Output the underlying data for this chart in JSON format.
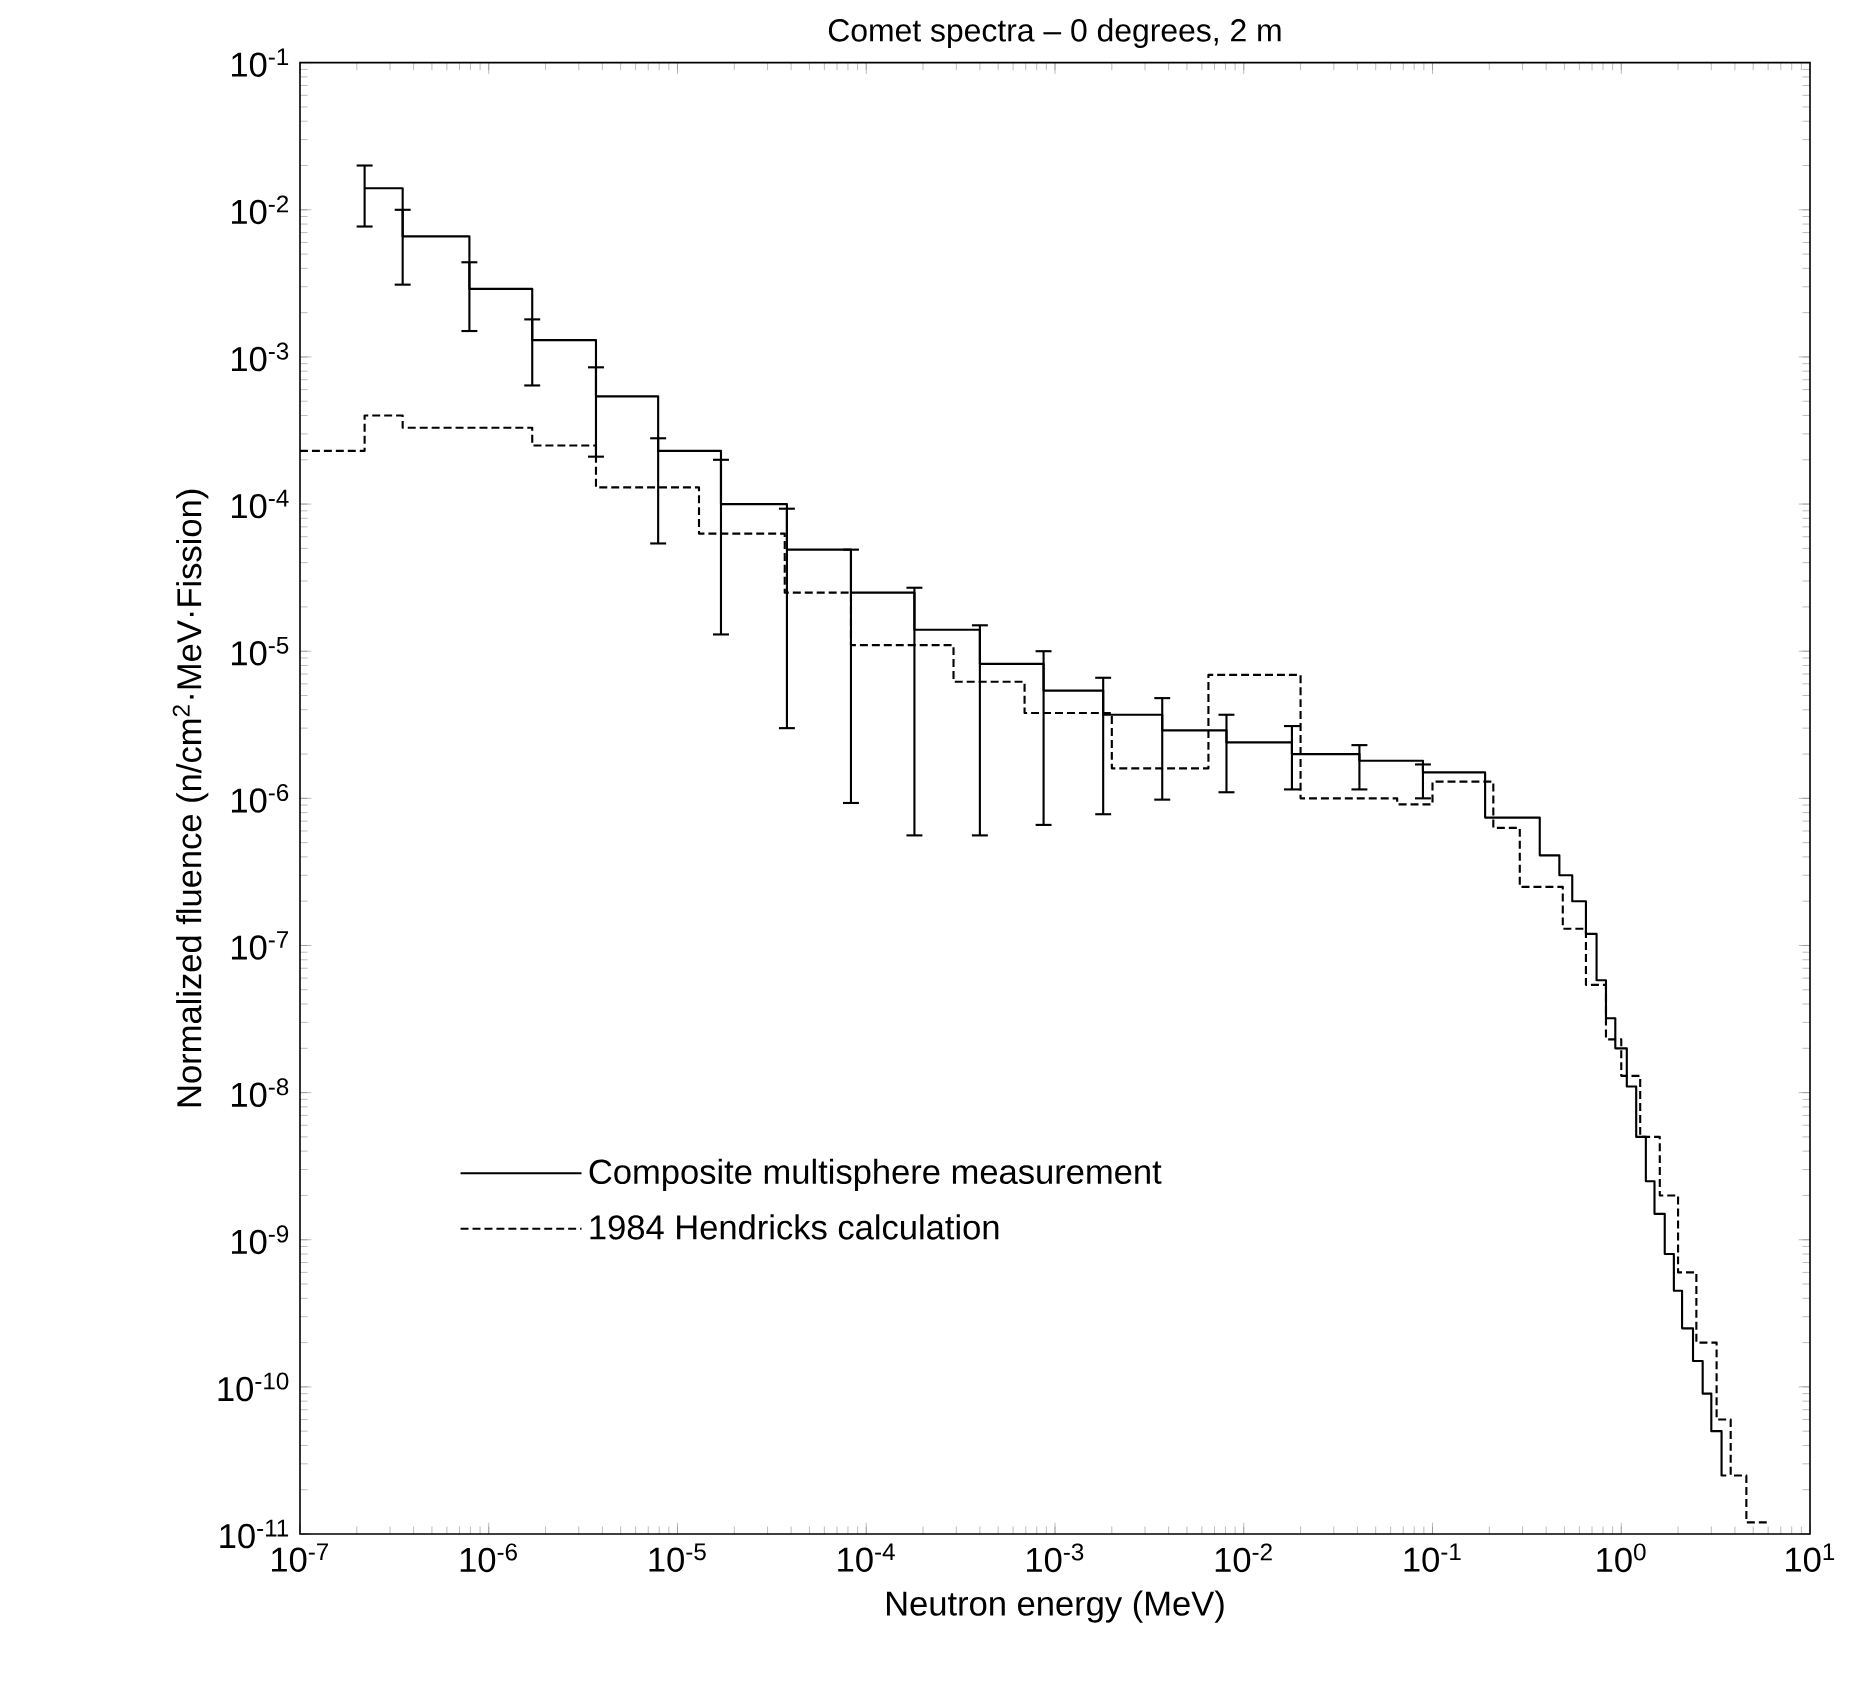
{
  "chart_data": {
    "type": "step",
    "title": "Comet spectra – 0 degrees, 2 m",
    "xlabel": "Neutron energy (MeV)",
    "ylabel": "Normalized fluence (n/cm$^{2}$·MeV·Fission)",
    "log": "xy",
    "grid": false,
    "legend": "bottom left",
    "xlim": [
      1e-07,
      10
    ],
    "ylim": [
      1e-11,
      0.1
    ],
    "xticks": [
      {
        "value": 1e-07,
        "label": "10$^{-7}$"
      },
      {
        "value": 1e-06,
        "label": "10$^{-6}$"
      },
      {
        "value": 1e-05,
        "label": "10$^{-5}$"
      },
      {
        "value": 0.0001,
        "label": "10$^{-4}$"
      },
      {
        "value": 0.001,
        "label": "10$^{-3}$"
      },
      {
        "value": 0.01,
        "label": "10$^{-2}$"
      },
      {
        "value": 0.1,
        "label": "10$^{-1}$"
      },
      {
        "value": 1,
        "label": "10$^{0}$"
      },
      {
        "value": 10,
        "label": "10$^{1}$"
      }
    ],
    "yticks": [
      {
        "value": 1e-11,
        "label": "10$^{-11}$"
      },
      {
        "value": 1e-10,
        "label": "10$^{-10}$"
      },
      {
        "value": 1e-09,
        "label": "10$^{-9}$"
      },
      {
        "value": 1e-08,
        "label": "10$^{-8}$"
      },
      {
        "value": 1e-07,
        "label": "10$^{-7}$"
      },
      {
        "value": 1e-06,
        "label": "10$^{-6}$"
      },
      {
        "value": 1e-05,
        "label": "10$^{-5}$"
      },
      {
        "value": 0.0001,
        "label": "10$^{-4}$"
      },
      {
        "value": 0.001,
        "label": "10$^{-3}$"
      },
      {
        "value": 0.01,
        "label": "10$^{-2}$"
      },
      {
        "value": 0.1,
        "label": "10$^{-1}$"
      }
    ],
    "series": [
      {
        "name": "Composite multisphere measurement",
        "color": "#000000",
        "line_style": "solid",
        "x": [
          2.2e-07,
          3.5e-07,
          7.9e-07,
          1.7e-06,
          3.7e-06,
          7.9e-06,
          1.7e-05,
          3.8e-05,
          8.3e-05,
          0.00018,
          0.0004,
          0.00087,
          0.0018,
          0.0037,
          0.0081,
          0.018,
          0.041,
          0.089,
          0.19,
          0.37,
          0.47,
          0.55,
          0.65,
          0.74,
          0.83,
          0.93,
          1.07,
          1.2,
          1.35,
          1.5,
          1.7,
          1.9,
          2.1,
          2.4,
          2.7,
          3.0,
          3.4,
          3.6
        ],
        "values": [
          0.014,
          0.0066,
          0.0029,
          0.0013,
          0.00054,
          0.00023,
          0.0001,
          4.9e-05,
          2.5e-05,
          1.4e-05,
          8.2e-06,
          5.4e-06,
          3.7e-06,
          2.9e-06,
          2.4e-06,
          2e-06,
          1.8e-06,
          1.5e-06,
          7.4e-07,
          4.1e-07,
          3e-07,
          2e-07,
          1.2e-07,
          5.8e-08,
          3.2e-08,
          2e-08,
          1.1e-08,
          5e-09,
          2.5e-09,
          1.5e-09,
          8e-10,
          4.5e-10,
          2.5e-10,
          1.5e-10,
          9e-11,
          5e-11,
          2.5e-11,
          2.5e-11
        ],
        "errors": [
          [
            0.0077,
            0.02
          ],
          [
            0.0031,
            0.01
          ],
          [
            0.0015,
            0.0044
          ],
          [
            0.00064,
            0.0018
          ],
          [
            0.00021,
            0.00085
          ],
          [
            5.4e-05,
            0.00028
          ],
          [
            1.3e-05,
            0.0002
          ],
          [
            3e-06,
            9.3e-05
          ],
          [
            9.3e-07,
            4.9e-05
          ],
          [
            5.6e-07,
            2.7e-05
          ],
          [
            5.6e-07,
            1.5e-05
          ],
          [
            6.6e-07,
            1e-05
          ],
          [
            7.8e-07,
            6.6e-06
          ],
          [
            9.8e-07,
            4.8e-06
          ],
          [
            1.1e-06,
            3.7e-06
          ],
          [
            1.15e-06,
            3.1e-06
          ],
          [
            1.15e-06,
            2.3e-06
          ],
          [
            1e-06,
            1.7e-06
          ],
          null,
          null,
          null,
          null,
          null,
          null,
          null,
          null,
          null,
          null,
          null,
          null,
          null,
          null,
          null,
          null,
          null,
          null,
          null,
          null
        ]
      },
      {
        "name": "1984 Hendricks calculation",
        "color": "#000000",
        "line_style": "dashed",
        "x": [
          1e-07,
          2.2e-07,
          3.5e-07,
          1.7e-06,
          3.7e-06,
          1.3e-05,
          3.7e-05,
          8.3e-05,
          0.00029,
          0.00069,
          0.002,
          0.0065,
          0.02,
          0.065,
          0.1,
          0.21,
          0.29,
          0.49,
          0.65,
          0.83,
          1.0,
          1.26,
          1.6,
          2.0,
          2.5,
          3.2,
          3.8,
          4.6,
          6.0
        ],
        "values": [
          0.00023,
          0.0004,
          0.00033,
          0.00025,
          0.00013,
          6.3e-05,
          2.5e-05,
          1.1e-05,
          6.2e-06,
          3.8e-06,
          1.6e-06,
          6.9e-06,
          1e-06,
          9.1e-07,
          1.3e-06,
          6.3e-07,
          2.5e-07,
          1.3e-07,
          5.4e-08,
          2.3e-08,
          1.3e-08,
          5e-09,
          2e-09,
          6e-10,
          2e-10,
          6e-11,
          2.5e-11,
          1.2e-11,
          1.2e-11
        ]
      }
    ]
  }
}
